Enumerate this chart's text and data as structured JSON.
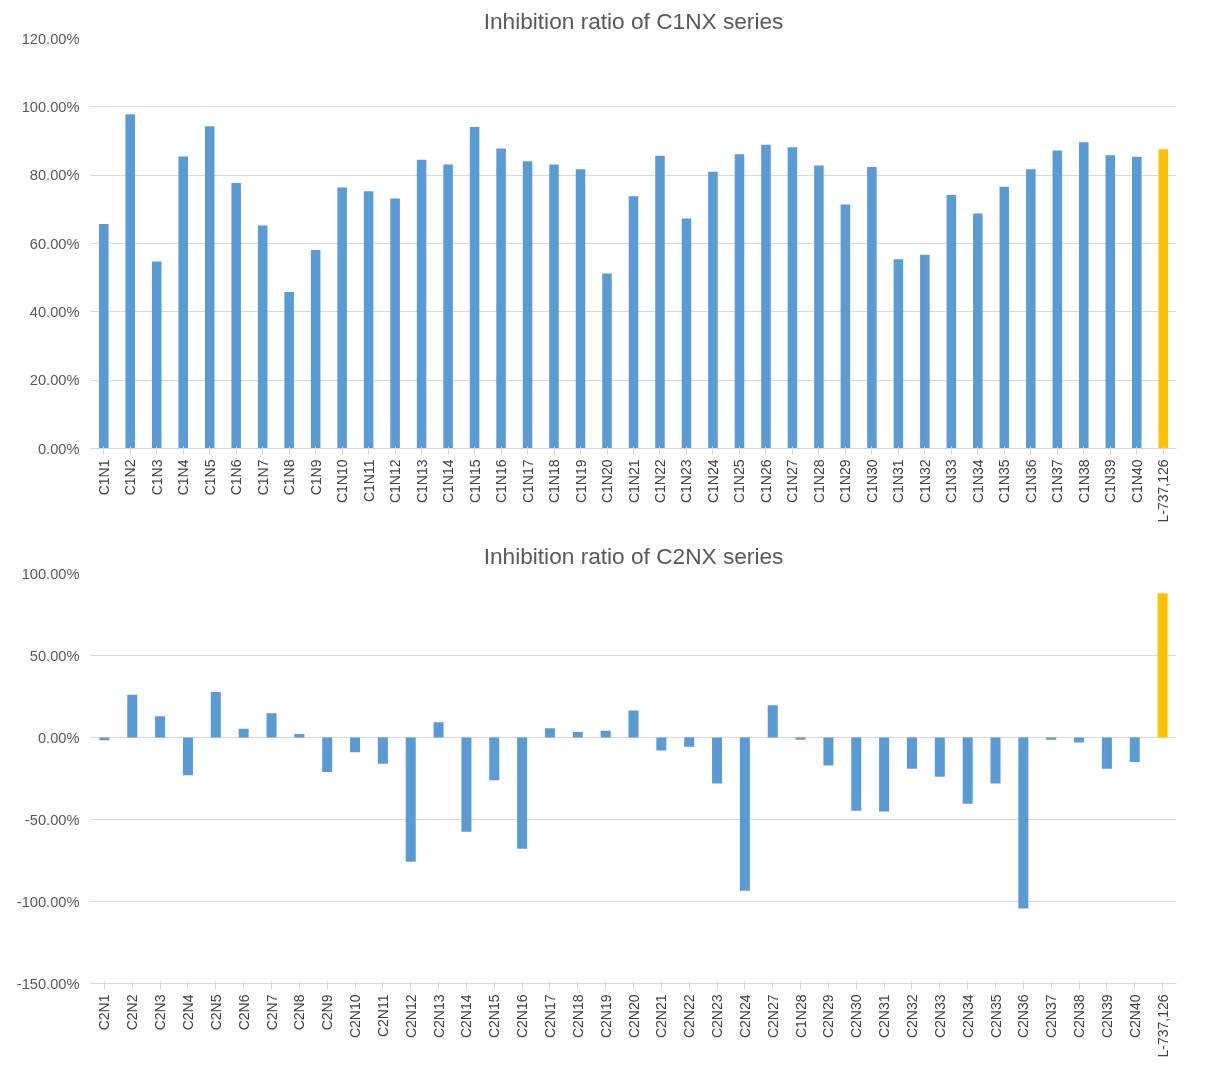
{
  "chart_data": [
    {
      "type": "bar",
      "title": "Inhibition ratio of C1NX series",
      "grid": "y",
      "categories": [
        "C1N1",
        "C1N2",
        "C1N3",
        "C1N4",
        "C1N5",
        "C1N6",
        "C1N7",
        "C1N8",
        "C1N9",
        "C1N10",
        "C1N11",
        "C1N12",
        "C1N13",
        "C1N14",
        "C1N15",
        "C1N16",
        "C1N17",
        "C1N18",
        "C1N19",
        "C1N20",
        "C1N21",
        "C1N22",
        "C1N23",
        "C1N24",
        "C1N25",
        "C1N26",
        "C1N27",
        "C1N28",
        "C1N29",
        "C1N30",
        "C1N31",
        "C1N32",
        "C1N33",
        "C1N34",
        "C1N35",
        "C1N36",
        "C1N37",
        "C1N38",
        "C1N39",
        "C1N40",
        "L-737,126"
      ],
      "values": [
        65.7,
        97.8,
        54.7,
        85.5,
        94.3,
        77.7,
        65.3,
        45.8,
        58.1,
        76.4,
        75.3,
        73.2,
        84.5,
        83.1,
        94.1,
        87.8,
        84.1,
        83.1,
        81.7,
        51.2,
        73.8,
        85.7,
        67.3,
        81.0,
        86.1,
        88.9,
        88.2,
        82.8,
        71.4,
        82.4,
        55.4,
        56.7,
        74.2,
        68.8,
        76.6,
        81.7,
        87.2,
        89.6,
        85.8,
        85.4,
        87.6
      ],
      "colors": [
        "#5b9bd5",
        "#5b9bd5",
        "#5b9bd5",
        "#5b9bd5",
        "#5b9bd5",
        "#5b9bd5",
        "#5b9bd5",
        "#5b9bd5",
        "#5b9bd5",
        "#5b9bd5",
        "#5b9bd5",
        "#5b9bd5",
        "#5b9bd5",
        "#5b9bd5",
        "#5b9bd5",
        "#5b9bd5",
        "#5b9bd5",
        "#5b9bd5",
        "#5b9bd5",
        "#5b9bd5",
        "#5b9bd5",
        "#5b9bd5",
        "#5b9bd5",
        "#5b9bd5",
        "#5b9bd5",
        "#5b9bd5",
        "#5b9bd5",
        "#5b9bd5",
        "#5b9bd5",
        "#5b9bd5",
        "#5b9bd5",
        "#5b9bd5",
        "#5b9bd5",
        "#5b9bd5",
        "#5b9bd5",
        "#5b9bd5",
        "#5b9bd5",
        "#5b9bd5",
        "#5b9bd5",
        "#5b9bd5",
        "#ffc000"
      ],
      "ylim": [
        0,
        120
      ],
      "yticks": [
        {
          "value": 0,
          "label": "0.00%"
        },
        {
          "value": 20,
          "label": "20.00%"
        },
        {
          "value": 40,
          "label": "40.00%"
        },
        {
          "value": 60,
          "label": "60.00%"
        },
        {
          "value": 80,
          "label": "80.00%"
        },
        {
          "value": 100,
          "label": "100.00%"
        },
        {
          "value": 120,
          "label": "120.00%"
        }
      ]
    },
    {
      "type": "bar",
      "title": "Inhibition ratio of C2NX series",
      "grid": "y",
      "categories": [
        "C2N1",
        "C2N2",
        "C2N3",
        "C2N4",
        "C2N5",
        "C2N6",
        "C2N7",
        "C2N8",
        "C2N9",
        "C2N10",
        "C2N11",
        "C2N12",
        "C2N13",
        "C2N14",
        "C2N15",
        "C2N16",
        "C2N17",
        "C2N18",
        "C2N19",
        "C2N20",
        "C2N21",
        "C2N22",
        "C2N23",
        "C2N24",
        "C2N27",
        "C1N28",
        "C2N29",
        "C2N30",
        "C2N31",
        "C2N32",
        "C2N33",
        "C2N34",
        "C2N35",
        "C2N36",
        "C2N37",
        "C2N38",
        "C2N39",
        "C2N40",
        "L-737,126"
      ],
      "values": [
        -1.7,
        26.1,
        12.9,
        -23,
        27.8,
        5.3,
        14.8,
        2.2,
        -21,
        -9,
        -16,
        -75.8,
        9.3,
        -57.4,
        -26,
        -67.9,
        5.7,
        3.3,
        4.1,
        16.4,
        -8.0,
        -5.6,
        -28,
        -93.4,
        19.7,
        -1.4,
        -17,
        -44.6,
        -45.1,
        -19,
        -24,
        -40.4,
        -28,
        -104.2,
        -1.4,
        -3.1,
        -19,
        -15,
        88.0
      ],
      "colors": [
        "#5b9bd5",
        "#5b9bd5",
        "#5b9bd5",
        "#5b9bd5",
        "#5b9bd5",
        "#5b9bd5",
        "#5b9bd5",
        "#5b9bd5",
        "#5b9bd5",
        "#5b9bd5",
        "#5b9bd5",
        "#5b9bd5",
        "#5b9bd5",
        "#5b9bd5",
        "#5b9bd5",
        "#5b9bd5",
        "#5b9bd5",
        "#5b9bd5",
        "#5b9bd5",
        "#5b9bd5",
        "#5b9bd5",
        "#5b9bd5",
        "#5b9bd5",
        "#5b9bd5",
        "#5b9bd5",
        "#5b9bd5",
        "#5b9bd5",
        "#5b9bd5",
        "#5b9bd5",
        "#5b9bd5",
        "#5b9bd5",
        "#5b9bd5",
        "#5b9bd5",
        "#5b9bd5",
        "#5b9bd5",
        "#5b9bd5",
        "#5b9bd5",
        "#5b9bd5",
        "#ffc000"
      ],
      "ylim": [
        -150,
        100
      ],
      "yticks": [
        {
          "value": -150,
          "label": "-150.00%"
        },
        {
          "value": -100,
          "label": "-100.00%"
        },
        {
          "value": -50,
          "label": "-50.00%"
        },
        {
          "value": 0,
          "label": "0.00%"
        },
        {
          "value": 50,
          "label": "50.00%"
        },
        {
          "value": 100,
          "label": "100.00%"
        }
      ]
    }
  ]
}
